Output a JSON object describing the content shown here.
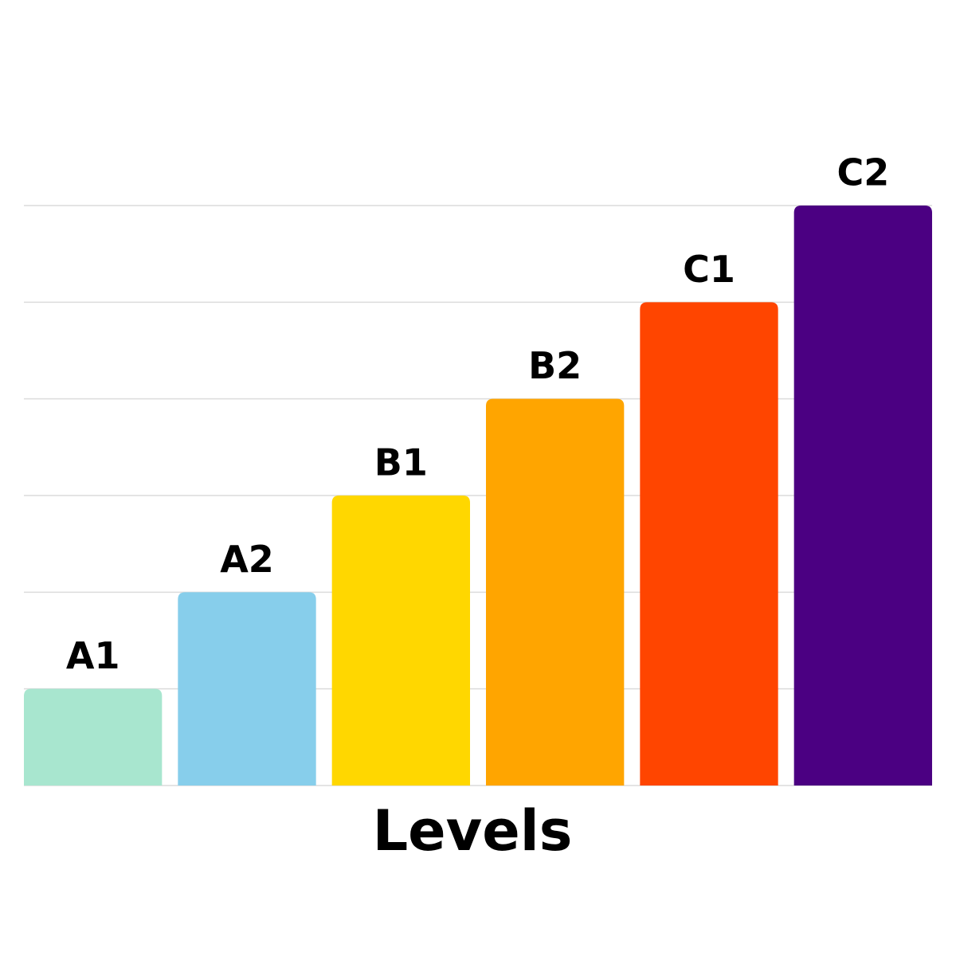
{
  "chart_data": {
    "type": "bar",
    "x_label": "Levels",
    "categories": [
      "A1",
      "A2",
      "B1",
      "B2",
      "C1",
      "C2"
    ],
    "values": [
      1,
      2,
      3,
      4,
      5,
      6
    ],
    "colors": [
      "#a8e6cf",
      "#87ceeb",
      "#ffd700",
      "#ffa500",
      "#ff4500",
      "#4b0082"
    ],
    "ylim": [
      0,
      6
    ],
    "yticks": [
      0,
      1,
      2,
      3,
      4,
      5,
      6
    ],
    "grid": true
  }
}
